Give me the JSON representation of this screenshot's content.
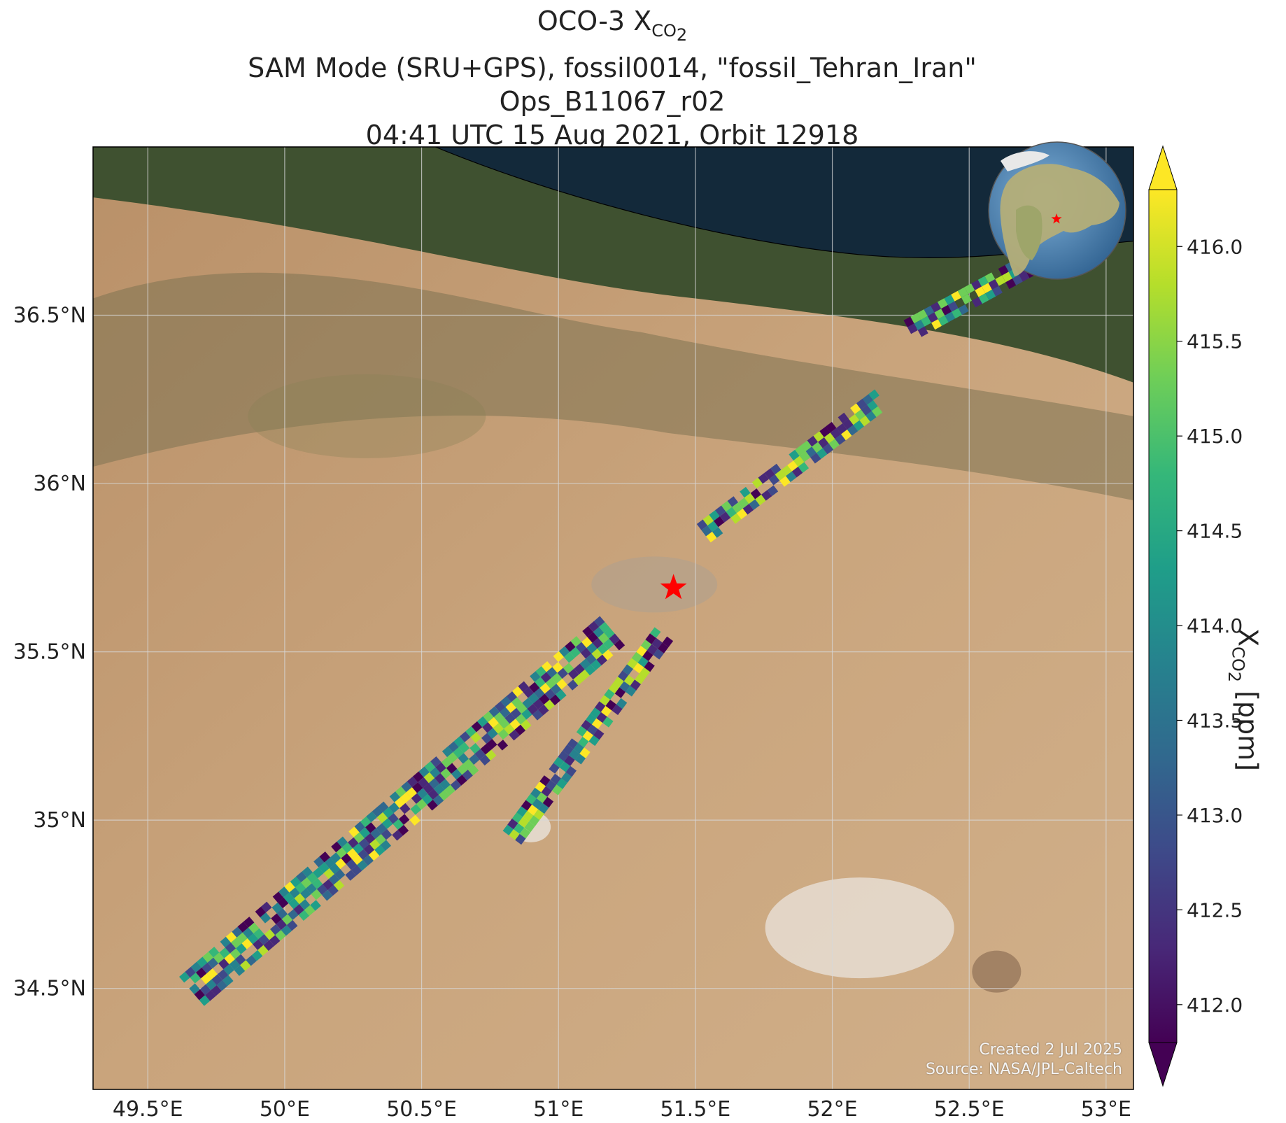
{
  "title": {
    "line1_prefix": "OCO-3 X",
    "line1_sub": "CO",
    "line1_sub2": "2",
    "line2": "SAM Mode (SRU+GPS), fossil0014, \"fossil_Tehran_Iran\"",
    "line3": "Ops_B11067_r02",
    "line4": "04:41 UTC 15 Aug 2021, Orbit 12918"
  },
  "map": {
    "lon_range": [
      49.3,
      53.1
    ],
    "lat_range": [
      34.2,
      37.0
    ],
    "lon_ticks": [
      49.5,
      50.0,
      50.5,
      51.0,
      51.5,
      52.0,
      52.5,
      53.0
    ],
    "lon_tick_labels": [
      "49.5°E",
      "50°E",
      "50.5°E",
      "51°E",
      "51.5°E",
      "52°E",
      "52.5°E",
      "53°E"
    ],
    "lat_ticks": [
      34.5,
      35.0,
      35.5,
      36.0,
      36.5
    ],
    "lat_tick_labels": [
      "34.5°N",
      "35°N",
      "35.5°N",
      "36°N",
      "36.5°N"
    ],
    "grid": true,
    "target_marker": {
      "lon": 51.42,
      "lat": 35.69,
      "symbol": "star",
      "color": "#ff0000"
    },
    "colors": {
      "sea": "#13293a",
      "desert": "#c8a27a",
      "mountain": "#3f5130",
      "salt_flat": "#e6ddd2",
      "city": "#a89f95"
    },
    "swath_segments": [
      {
        "lon0": 49.68,
        "lat0": 34.49,
        "lon1": 51.2,
        "lat1": 35.55,
        "width_deg": 0.13,
        "color": "#3ba88a"
      },
      {
        "lon0": 50.85,
        "lat0": 34.95,
        "lon1": 51.4,
        "lat1": 35.55,
        "width_deg": 0.08,
        "color": "#3b4d8f"
      },
      {
        "lon0": 51.55,
        "lat0": 35.85,
        "lon1": 52.2,
        "lat1": 36.25,
        "width_deg": 0.07,
        "color": "#5ab86a"
      },
      {
        "lon0": 52.3,
        "lat0": 36.45,
        "lon1": 52.75,
        "lat1": 36.65,
        "width_deg": 0.05,
        "color": "#3a2e7a"
      }
    ]
  },
  "colorbar": {
    "label_prefix": "X",
    "label_sub": "CO",
    "label_sub2": "2",
    "label_suffix": " [ppm]",
    "vmin": 411.8,
    "vmax": 416.3,
    "ticks": [
      412.0,
      412.5,
      413.0,
      413.5,
      414.0,
      414.5,
      415.0,
      415.5,
      416.0
    ],
    "tick_labels": [
      "412.0",
      "412.5",
      "413.0",
      "413.5",
      "414.0",
      "414.5",
      "415.0",
      "415.5",
      "416.0"
    ],
    "colormap": "viridis",
    "extend": "both",
    "stops": [
      "#440154",
      "#482878",
      "#3e4989",
      "#31688e",
      "#26828e",
      "#1f9e89",
      "#35b779",
      "#6ece58",
      "#b5de2b",
      "#fde725"
    ]
  },
  "inset_globe": {
    "marker_color": "#ff0000",
    "ocean_color": "#4f86b8",
    "land_color": "#b6b27a"
  },
  "credits": {
    "line1": "Created 2 Jul 2025",
    "line2": "Source: NASA/JPL-Caltech"
  }
}
